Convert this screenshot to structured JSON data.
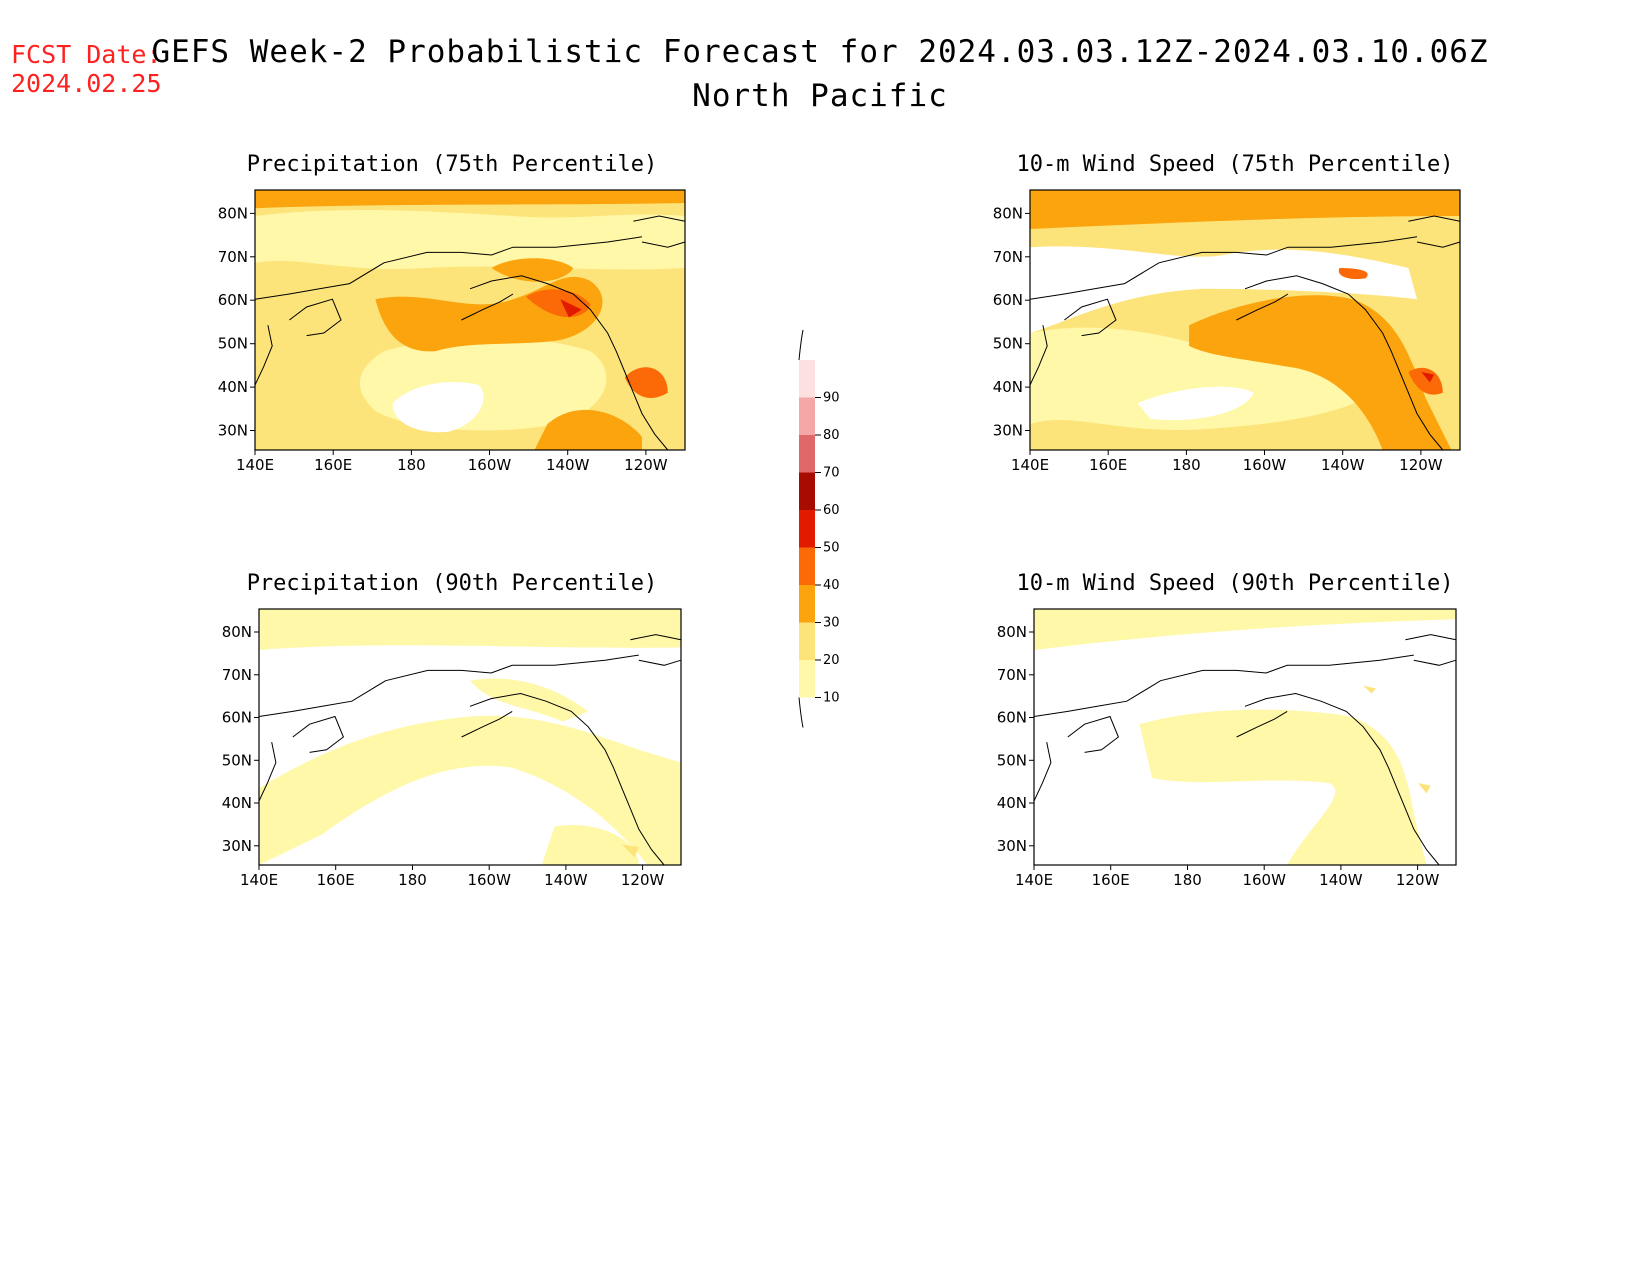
{
  "header": {
    "fcst_label": "FCST Date:",
    "fcst_date": "2024.02.25",
    "title": "GEFS Week-2 Probabilistic Forecast for 2024.03.03.12Z-2024.03.10.06Z",
    "subtitle": "North Pacific"
  },
  "axes": {
    "lon_labels": [
      "140E",
      "160E",
      "180",
      "160W",
      "140W",
      "120W"
    ],
    "lat_labels": [
      "80N",
      "70N",
      "60N",
      "50N",
      "40N",
      "30N"
    ]
  },
  "panels": [
    {
      "title": "Precipitation (75th Percentile)",
      "variable": "precipitation",
      "percentile": 75
    },
    {
      "title": "10-m Wind Speed (75th Percentile)",
      "variable": "wind",
      "percentile": 75
    },
    {
      "title": "Precipitation (90th Percentile)",
      "variable": "precipitation",
      "percentile": 90
    },
    {
      "title": "10-m Wind Speed (90th Percentile)",
      "variable": "wind",
      "percentile": 90
    }
  ],
  "colorbar": {
    "levels": [
      "10",
      "20",
      "30",
      "40",
      "50",
      "60",
      "70",
      "80",
      "90"
    ],
    "colors": [
      "#fff8a8",
      "#fde47a",
      "#fba40e",
      "#fb6a06",
      "#e21b00",
      "#a80c00",
      "#e06868",
      "#f5a6a6",
      "#fde0e0"
    ]
  }
}
